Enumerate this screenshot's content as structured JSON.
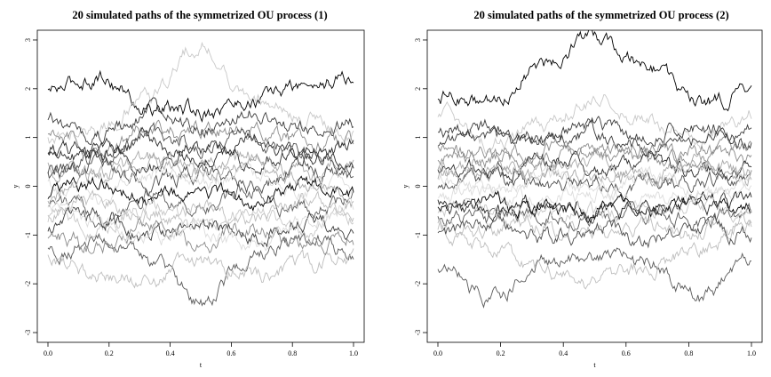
{
  "chart_data": [
    {
      "type": "line",
      "title": "20 simulated paths of the symmetrized OU process (1)",
      "xlabel": "t",
      "ylabel": "y",
      "xlim": [
        0.0,
        1.0
      ],
      "ylim": [
        -3.2,
        3.2
      ],
      "x_ticks": [
        "0.0",
        "0.2",
        "0.4",
        "0.6",
        "0.8",
        "1.0"
      ],
      "y_ticks": [
        "-3",
        "-2",
        "-1",
        "0",
        "1",
        "2",
        "3"
      ],
      "n_paths": 20,
      "grid": false,
      "series": [
        {
          "values": [
            1.95,
            2.25,
            1.6,
            1.55,
            1.75,
            2.05,
            2.2
          ]
        },
        {
          "values": [
            -1.3,
            -1.1,
            -1.55,
            -2.4,
            -1.5,
            -1.1,
            -1.35
          ]
        },
        {
          "values": [
            -1.45,
            -1.8,
            -1.9,
            -1.5,
            -1.8,
            -1.6,
            -1.5
          ]
        },
        {
          "values": [
            0.95,
            1.2,
            1.85,
            2.9,
            1.8,
            1.4,
            1.1
          ]
        },
        {
          "values": [
            1.3,
            1.05,
            1.5,
            1.2,
            1.6,
            1.15,
            1.3
          ]
        },
        {
          "values": [
            1.0,
            0.8,
            1.2,
            1.05,
            1.25,
            0.9,
            0.95
          ]
        },
        {
          "values": [
            0.6,
            0.85,
            0.45,
            0.75,
            0.5,
            0.8,
            0.55
          ]
        },
        {
          "values": [
            0.4,
            0.15,
            0.6,
            0.35,
            0.65,
            0.2,
            0.45
          ]
        },
        {
          "values": [
            0.2,
            0.45,
            0.05,
            0.3,
            0.0,
            0.4,
            0.15
          ]
        },
        {
          "values": [
            0.0,
            -0.2,
            0.25,
            0.05,
            0.3,
            -0.1,
            0.0
          ]
        },
        {
          "values": [
            -0.15,
            0.1,
            -0.3,
            -0.1,
            -0.35,
            0.05,
            -0.2
          ]
        },
        {
          "values": [
            -0.3,
            -0.55,
            -0.15,
            -0.45,
            -0.1,
            -0.5,
            -0.3
          ]
        },
        {
          "values": [
            -0.5,
            -0.3,
            -0.7,
            -0.4,
            -0.75,
            -0.35,
            -0.55
          ]
        },
        {
          "values": [
            -0.65,
            -0.9,
            -0.45,
            -0.8,
            -0.5,
            -0.85,
            -0.6
          ]
        },
        {
          "values": [
            -0.85,
            -0.6,
            -1.0,
            -0.7,
            -1.05,
            -0.65,
            -0.9
          ]
        },
        {
          "values": [
            -1.0,
            -1.25,
            -0.85,
            -1.15,
            -0.8,
            -1.2,
            -1.05
          ]
        },
        {
          "values": [
            0.75,
            0.55,
            0.9,
            0.6,
            0.95,
            0.5,
            0.8
          ]
        },
        {
          "values": [
            -0.25,
            0.2,
            0.5,
            0.35,
            0.45,
            0.15,
            -0.3
          ]
        },
        {
          "values": [
            0.3,
            0.6,
            1.0,
            0.85,
            1.0,
            0.65,
            0.35
          ]
        },
        {
          "values": [
            -0.4,
            -0.7,
            -1.1,
            -0.95,
            -1.15,
            -0.75,
            -0.45
          ]
        }
      ]
    },
    {
      "type": "line",
      "title": "20 simulated paths of the symmetrized OU process (2)",
      "xlabel": "t",
      "ylabel": "y",
      "xlim": [
        0.0,
        1.0
      ],
      "ylim": [
        -3.2,
        3.2
      ],
      "x_ticks": [
        "0.0",
        "0.2",
        "0.4",
        "0.6",
        "0.8",
        "1.0"
      ],
      "y_ticks": [
        "-3",
        "-2",
        "-1",
        "0",
        "1",
        "2",
        "3"
      ],
      "n_paths": 20,
      "grid": false,
      "series": [
        {
          "values": [
            1.9,
            1.7,
            2.5,
            3.1,
            2.5,
            1.7,
            1.9
          ]
        },
        {
          "values": [
            -1.6,
            -2.3,
            -1.6,
            -1.4,
            -1.6,
            -2.3,
            -1.6
          ]
        },
        {
          "values": [
            -0.8,
            -1.3,
            -1.7,
            -2.0,
            -1.7,
            -1.3,
            -0.8
          ]
        },
        {
          "values": [
            1.5,
            0.9,
            1.3,
            1.8,
            1.3,
            0.9,
            1.5
          ]
        },
        {
          "values": [
            0.9,
            1.0,
            0.85,
            1.1,
            0.85,
            1.0,
            0.9
          ]
        },
        {
          "values": [
            0.6,
            0.7,
            0.55,
            0.75,
            0.55,
            0.7,
            0.6
          ]
        },
        {
          "values": [
            0.4,
            0.3,
            0.5,
            0.35,
            0.5,
            0.3,
            0.4
          ]
        },
        {
          "values": [
            0.2,
            0.35,
            0.15,
            0.25,
            0.15,
            0.35,
            0.2
          ]
        },
        {
          "values": [
            0.0,
            0.1,
            -0.05,
            0.1,
            -0.05,
            0.1,
            0.0
          ]
        },
        {
          "values": [
            -0.2,
            -0.1,
            -0.25,
            -0.15,
            -0.25,
            -0.1,
            -0.2
          ]
        },
        {
          "values": [
            -0.4,
            -0.35,
            -0.5,
            -0.4,
            -0.5,
            -0.35,
            -0.4
          ]
        },
        {
          "values": [
            -0.6,
            -0.7,
            -0.55,
            -0.7,
            -0.55,
            -0.7,
            -0.6
          ]
        },
        {
          "values": [
            -0.75,
            -0.9,
            -0.8,
            -0.95,
            -0.8,
            -0.9,
            -0.75
          ]
        },
        {
          "values": [
            -0.55,
            -0.4,
            -0.6,
            -0.45,
            -0.6,
            -0.4,
            -0.55
          ]
        },
        {
          "values": [
            1.1,
            1.2,
            1.0,
            1.25,
            1.0,
            1.2,
            1.1
          ]
        },
        {
          "values": [
            0.8,
            0.55,
            0.75,
            0.6,
            0.75,
            0.55,
            0.8
          ]
        },
        {
          "values": [
            -0.3,
            -0.5,
            -0.35,
            -0.55,
            -0.35,
            -0.5,
            -0.3
          ]
        },
        {
          "values": [
            0.3,
            0.5,
            0.25,
            0.55,
            0.25,
            0.5,
            0.3
          ]
        },
        {
          "values": [
            -1.0,
            -0.8,
            -1.1,
            -0.85,
            -1.1,
            -0.8,
            -1.0
          ]
        },
        {
          "values": [
            0.1,
            -0.15,
            0.2,
            -0.1,
            0.2,
            -0.15,
            0.1
          ]
        }
      ]
    }
  ]
}
